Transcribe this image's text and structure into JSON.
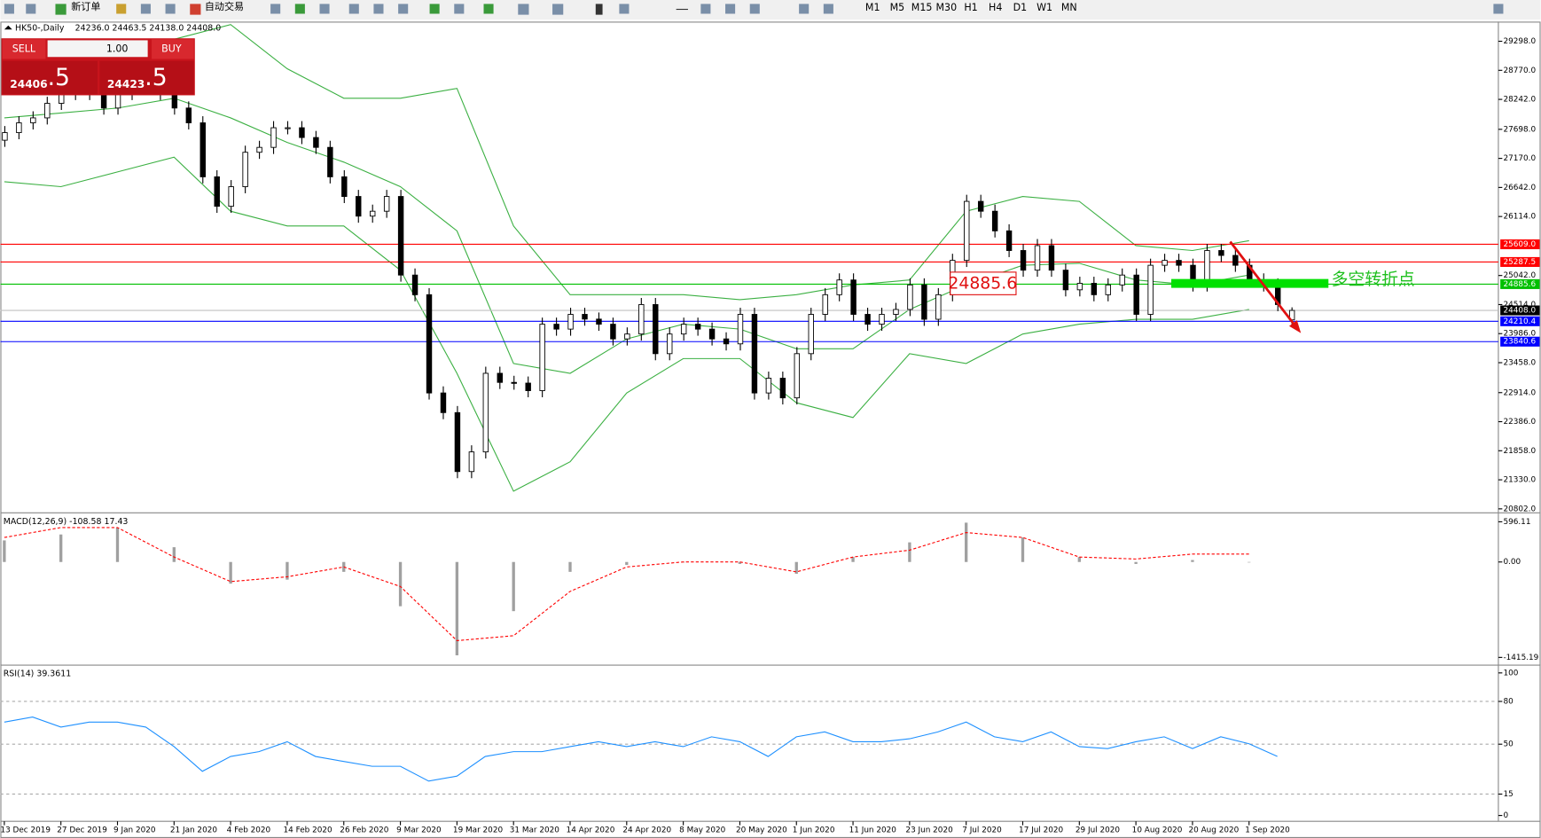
{
  "toolbar": {
    "new_order": "新订单",
    "auto_trading": "自动交易",
    "timeframes": [
      "M1",
      "M5",
      "M15",
      "M30",
      "H1",
      "H4",
      "D1",
      "W1",
      "MN"
    ]
  },
  "trade_panel": {
    "sell": "SELL",
    "lots": "1.00",
    "buy": "BUY",
    "sell_price": "24406",
    "sell_frac": ".5",
    "buy_price": "24423",
    "buy_frac": ".5"
  },
  "chart_data": [
    {
      "type": "candlestick",
      "title": "HK50-,Daily",
      "ohlc": "24236.0 24463.5 24138.0 24408.0",
      "ylim": [
        20748,
        29655
      ],
      "yticks": [
        {
          "value": 29298,
          "label": "29298.0"
        },
        {
          "value": 28770,
          "label": "28770.0"
        },
        {
          "value": 28242,
          "label": "28242.0"
        },
        {
          "value": 27698,
          "label": "27698.0"
        },
        {
          "value": 27170,
          "label": "27170.0"
        },
        {
          "value": 26642,
          "label": "26642.0"
        },
        {
          "value": 26114,
          "label": "26114.0"
        },
        {
          "value": 25042,
          "label": "25042.0"
        },
        {
          "value": 24514,
          "label": "24514.0"
        },
        {
          "value": 23986,
          "label": "23986.0"
        },
        {
          "value": 23458,
          "label": "23458.0"
        },
        {
          "value": 22914,
          "label": "22914.0"
        },
        {
          "value": 22386,
          "label": "22386.0"
        },
        {
          "value": 21858,
          "label": "21858.0"
        },
        {
          "value": 21330,
          "label": "21330.0"
        },
        {
          "value": 20802,
          "label": "20802.0"
        }
      ],
      "categories": [
        "13 Dec 2019",
        "27 Dec 2019",
        "9 Jan 2020",
        "21 Jan 2020",
        "4 Feb 2020",
        "14 Feb 2020",
        "26 Feb 2020",
        "9 Mar 2020",
        "19 Mar 2020",
        "31 Mar 2020",
        "14 Apr 2020",
        "24 Apr 2020",
        "8 May 2020",
        "20 May 2020",
        "1 Jun 2020",
        "11 Jun 2020",
        "23 Jun 2020",
        "7 Jul 2020",
        "17 Jul 2020",
        "29 Jul 2020",
        "10 Aug 2020",
        "20 Aug 2020",
        "1 Sep 2020"
      ],
      "candles": [
        [
          27500,
          27758,
          27380,
          27638
        ],
        [
          27638,
          27936,
          27518,
          27816
        ],
        [
          27816,
          28026,
          27696,
          27906
        ],
        [
          27906,
          28290,
          27786,
          28170
        ],
        [
          28170,
          28470,
          28050,
          28350
        ],
        [
          28350,
          28560,
          28230,
          28440
        ],
        [
          28440,
          28560,
          28230,
          28350
        ],
        [
          28350,
          28470,
          27965,
          28085
        ],
        [
          28085,
          28470,
          27965,
          28350
        ],
        [
          28350,
          28650,
          28230,
          28530
        ],
        [
          28530,
          28740,
          28410,
          28620
        ],
        [
          28620,
          28740,
          28230,
          28350
        ],
        [
          28350,
          28470,
          27965,
          28085
        ],
        [
          28085,
          28205,
          27696,
          27816
        ],
        [
          27816,
          27936,
          26715,
          26835
        ],
        [
          26835,
          26955,
          26180,
          26300
        ],
        [
          26300,
          26776,
          26180,
          26656
        ],
        [
          26656,
          27401,
          26536,
          27281
        ],
        [
          27281,
          27490,
          27161,
          27370
        ],
        [
          27370,
          27847,
          27250,
          27727
        ],
        [
          27727,
          27847,
          27607,
          27727
        ],
        [
          27727,
          27847,
          27429,
          27549
        ],
        [
          27549,
          27669,
          27250,
          27370
        ],
        [
          27370,
          27490,
          26715,
          26835
        ],
        [
          26835,
          26955,
          26358,
          26478
        ],
        [
          26478,
          26598,
          26001,
          26121
        ],
        [
          26121,
          26330,
          26001,
          26210
        ],
        [
          26210,
          26598,
          26090,
          26478
        ],
        [
          26478,
          26598,
          24930,
          25050
        ],
        [
          25050,
          25170,
          24573,
          24693
        ],
        [
          24693,
          24813,
          22788,
          22908
        ],
        [
          22908,
          23028,
          22431,
          22551
        ],
        [
          22551,
          22671,
          21360,
          21480
        ],
        [
          21480,
          21957,
          21360,
          21837
        ],
        [
          21837,
          23385,
          21717,
          23265
        ],
        [
          23265,
          23385,
          22980,
          23100
        ],
        [
          23100,
          23220,
          22967,
          23087
        ],
        [
          23087,
          23207,
          22830,
          22950
        ],
        [
          22950,
          24277,
          22830,
          24157
        ],
        [
          24157,
          24277,
          23948,
          24068
        ],
        [
          24068,
          24456,
          23948,
          24336
        ],
        [
          24336,
          24456,
          24130,
          24250
        ],
        [
          24250,
          24370,
          24037,
          24157
        ],
        [
          24157,
          24277,
          23770,
          23890
        ],
        [
          23890,
          24099,
          23770,
          23979
        ],
        [
          23979,
          24634,
          23859,
          24514
        ],
        [
          24514,
          24634,
          23502,
          23622
        ],
        [
          23622,
          24099,
          23502,
          23979
        ],
        [
          23979,
          24277,
          23859,
          24157
        ],
        [
          24157,
          24277,
          23948,
          24068
        ],
        [
          24068,
          24188,
          23770,
          23890
        ],
        [
          23890,
          24010,
          23680,
          23800
        ],
        [
          23800,
          24456,
          23680,
          24336
        ],
        [
          24336,
          24456,
          22788,
          22908
        ],
        [
          22908,
          23296,
          22788,
          23176
        ],
        [
          23176,
          23296,
          22699,
          22819
        ],
        [
          22819,
          23742,
          22699,
          23622
        ],
        [
          23622,
          24456,
          23502,
          24336
        ],
        [
          24336,
          24813,
          24216,
          24693
        ],
        [
          24693,
          25081,
          24573,
          24961
        ],
        [
          24961,
          25081,
          24216,
          24336
        ],
        [
          24336,
          24456,
          24037,
          24157
        ],
        [
          24157,
          24456,
          24037,
          24336
        ],
        [
          24336,
          24545,
          24216,
          24425
        ],
        [
          24425,
          24991,
          24305,
          24871
        ],
        [
          24871,
          24991,
          24127,
          24247
        ],
        [
          24247,
          24813,
          24127,
          24693
        ],
        [
          24693,
          25437,
          24573,
          25317
        ],
        [
          25317,
          26509,
          25197,
          26389
        ],
        [
          26389,
          26509,
          26090,
          26210
        ],
        [
          26210,
          26330,
          25733,
          25853
        ],
        [
          25853,
          25973,
          25376,
          25496
        ],
        [
          25496,
          25616,
          25019,
          25139
        ],
        [
          25139,
          25705,
          25019,
          25585
        ],
        [
          25585,
          25705,
          25019,
          25139
        ],
        [
          25139,
          25259,
          24662,
          24782
        ],
        [
          24782,
          25020,
          24662,
          24900
        ],
        [
          24900,
          25020,
          24573,
          24693
        ],
        [
          24693,
          24991,
          24573,
          24871
        ],
        [
          24871,
          25170,
          24751,
          25050
        ],
        [
          25050,
          25170,
          24216,
          24336
        ],
        [
          24336,
          25348,
          24216,
          25228
        ],
        [
          25228,
          25437,
          25108,
          25317
        ],
        [
          25317,
          25437,
          25108,
          25228
        ],
        [
          25228,
          25348,
          24751,
          24871
        ],
        [
          24871,
          25616,
          24751,
          25496
        ],
        [
          25496,
          25616,
          25287,
          25407
        ],
        [
          25407,
          25527,
          25108,
          25228
        ],
        [
          25228,
          25348,
          24841,
          24961
        ],
        [
          24961,
          25081,
          24751,
          24871
        ],
        [
          24871,
          24991,
          24394,
          24514
        ],
        [
          24236,
          24463.5,
          24138,
          24408
        ]
      ],
      "bands": {
        "color": "#3cb043",
        "upper": [
          28977,
          28977,
          29066,
          29334,
          29601,
          28798,
          28263,
          28263,
          28441,
          25942,
          24693,
          24693,
          24693,
          24604,
          24693,
          24871,
          24961,
          26210,
          26478,
          26389,
          25585,
          25496,
          25674
        ],
        "middle": [
          27906,
          27995,
          28085,
          28263,
          27906,
          27460,
          27103,
          26656,
          25853,
          23443,
          23265,
          23890,
          24157,
          24068,
          23711,
          23711,
          24425,
          24871,
          25228,
          25264,
          24961,
          24871,
          25050
        ],
        "lower": [
          26745,
          26656,
          26924,
          27192,
          26210,
          25942,
          25942,
          25139,
          23265,
          21123,
          21658,
          22908,
          23533,
          23533,
          22729,
          22462,
          23622,
          23443,
          23979,
          24157,
          24247,
          24247,
          24425
        ]
      },
      "levels": [
        {
          "value": 25609,
          "label": "25609.0",
          "color": "#ff0000"
        },
        {
          "value": 25287.5,
          "label": "25287.5",
          "color": "#ff0000"
        },
        {
          "value": 24885.6,
          "label": "24885.6",
          "color": "#00c000"
        },
        {
          "value": 24408,
          "label": "24408.0",
          "color": "#000000"
        },
        {
          "value": 24210.4,
          "label": "24210.4",
          "color": "#0000ff"
        },
        {
          "value": 23840.6,
          "label": "23840.6",
          "color": "#0000ff"
        }
      ],
      "annotations": [
        "24885.6",
        "多空转折点"
      ]
    },
    {
      "type": "macd",
      "title": "MACD(12,26,9) -108.58 17.43",
      "ylim": [
        -1500,
        700
      ],
      "yticks": [
        {
          "value": 596.11,
          "label": "596.11"
        },
        {
          "value": 0,
          "label": "0.00"
        },
        {
          "value": -1415.19,
          "label": "-1415.19"
        }
      ],
      "histogram": {
        "color": "#a0a0a0",
        "values": [
          320,
          408,
          510,
          219,
          -321,
          -262,
          -146,
          -656,
          -1384,
          -729,
          -146,
          -44,
          0,
          -29,
          -175,
          73,
          291,
          583,
          364,
          73,
          -29,
          29,
          0
        ]
      },
      "signal": {
        "color": "#ff0000",
        "values": [
          364,
          510,
          510,
          73,
          -291,
          -219,
          -73,
          -364,
          -1166,
          -1093,
          -437,
          -73,
          0,
          0,
          -146,
          73,
          175,
          437,
          364,
          73,
          44,
          117,
          117
        ]
      }
    },
    {
      "type": "rsi",
      "title": "RSI(14) 39.3611",
      "ylim": [
        -3.4,
        104.1
      ],
      "yticks": [
        100,
        80,
        50,
        15,
        0
      ],
      "grid": [
        80,
        50,
        15
      ],
      "color": "#1e90ff",
      "values": [
        65.5,
        69,
        62,
        65.5,
        65.5,
        62,
        48.3,
        31,
        41.4,
        44.8,
        51.7,
        41.4,
        37.9,
        34.5,
        34.5,
        24.1,
        27.6,
        41.4,
        44.8,
        44.8,
        48.3,
        51.7,
        48.3,
        51.7,
        48.3,
        55.2,
        51.7,
        41.4,
        55.2,
        58.6,
        51.7,
        51.7,
        53.8,
        58.6,
        65.5,
        55.2,
        51.7,
        58.6,
        48.3,
        46.9,
        51.7,
        55.2,
        46.9,
        55.2,
        50.3,
        41.4
      ]
    }
  ]
}
